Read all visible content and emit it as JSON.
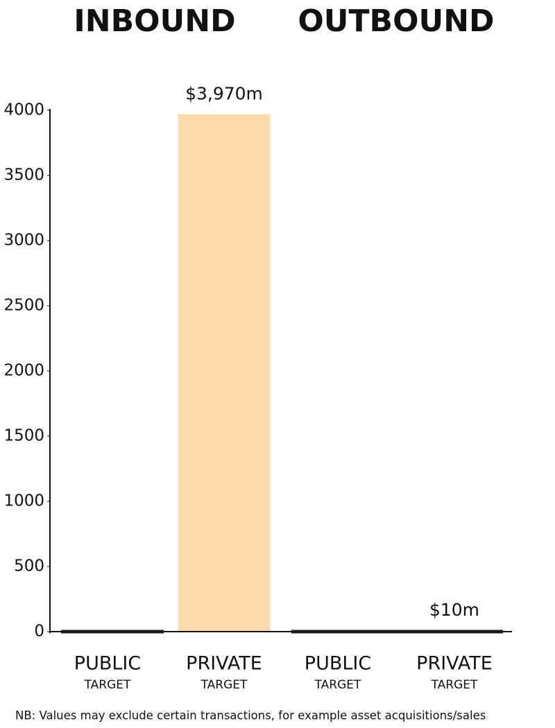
{
  "chart_data": {
    "type": "bar",
    "groups": [
      "INBOUND",
      "OUTBOUND"
    ],
    "categories": [
      "PUBLIC",
      "PRIVATE",
      "PUBLIC",
      "PRIVATE"
    ],
    "category_sublabels": [
      "TARGET",
      "TARGET",
      "TARGET",
      "TARGET"
    ],
    "values": [
      0,
      3970,
      0,
      10
    ],
    "value_labels": [
      null,
      "$3,970m",
      null,
      "$10m"
    ],
    "color": "#fcdcae",
    "ylim": [
      0,
      4000
    ],
    "yticks": [
      0,
      500,
      1000,
      1500,
      2000,
      2500,
      3000,
      3500,
      4000
    ],
    "note": "NB: Values may exclude certain transactions, for example asset acquisitions/sales"
  }
}
